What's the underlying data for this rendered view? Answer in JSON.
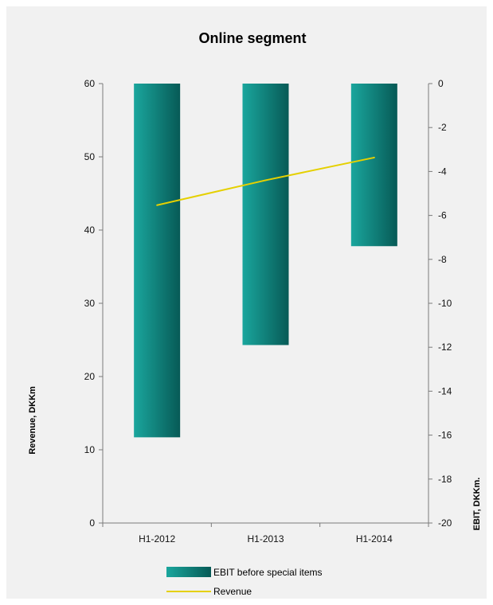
{
  "chart_data": {
    "type": "bar",
    "title": "Online segment",
    "categories": [
      "H1-2012",
      "H1-2013",
      "H1-2014"
    ],
    "left_axis": {
      "label": "Revenue, DKKm",
      "ylim": [
        0,
        60
      ],
      "ticks": [
        0,
        10,
        20,
        30,
        40,
        50,
        60
      ]
    },
    "right_axis": {
      "label": "EBIT, DKKm.",
      "ylim": [
        -20,
        0
      ],
      "ticks": [
        0,
        -2,
        -4,
        -6,
        -8,
        -10,
        -12,
        -14,
        -16,
        -18,
        -20
      ]
    },
    "series": [
      {
        "name": "EBIT before special items",
        "type": "bar",
        "axis": "right",
        "values": [
          -16.1,
          -11.9,
          -7.4
        ]
      },
      {
        "name": "Revenue",
        "type": "line",
        "axis": "left",
        "values": [
          43.4,
          46.8,
          49.9
        ]
      }
    ],
    "legend_position": "bottom",
    "grid": false
  },
  "colors": {
    "background": "#f1f1f1",
    "bar_light": "#1aa69d",
    "bar_dark": "#075a56",
    "line": "#e5d000",
    "axis": "#7a7a7a"
  }
}
